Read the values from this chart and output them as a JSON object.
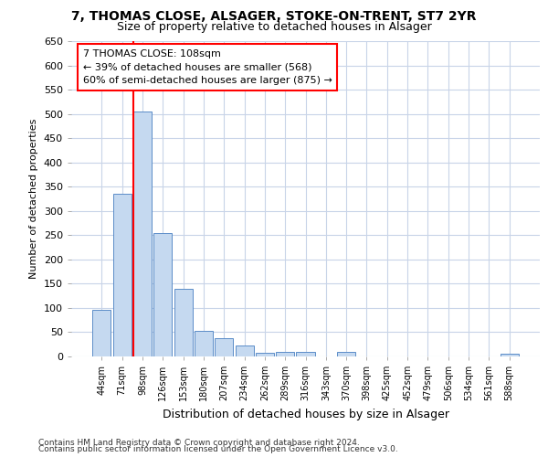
{
  "title_line1": "7, THOMAS CLOSE, ALSAGER, STOKE-ON-TRENT, ST7 2YR",
  "title_line2": "Size of property relative to detached houses in Alsager",
  "xlabel": "Distribution of detached houses by size in Alsager",
  "ylabel": "Number of detached properties",
  "footnote_line1": "Contains HM Land Registry data © Crown copyright and database right 2024.",
  "footnote_line2": "Contains public sector information licensed under the Open Government Licence v3.0.",
  "annotation_line1": "7 THOMAS CLOSE: 108sqm",
  "annotation_line2": "← 39% of detached houses are smaller (568)",
  "annotation_line3": "60% of semi-detached houses are larger (875) →",
  "bar_color": "#c5d9f0",
  "bar_edge_color": "#5b8dc8",
  "grid_color": "#c8d4e8",
  "vline_color": "red",
  "categories": [
    "44sqm",
    "71sqm",
    "98sqm",
    "126sqm",
    "153sqm",
    "180sqm",
    "207sqm",
    "234sqm",
    "262sqm",
    "289sqm",
    "316sqm",
    "343sqm",
    "370sqm",
    "398sqm",
    "425sqm",
    "452sqm",
    "479sqm",
    "506sqm",
    "534sqm",
    "561sqm",
    "588sqm"
  ],
  "values": [
    97,
    335,
    505,
    255,
    140,
    52,
    37,
    22,
    8,
    10,
    10,
    0,
    10,
    0,
    0,
    0,
    0,
    0,
    0,
    0,
    5
  ],
  "ylim": [
    0,
    650
  ],
  "yticks": [
    0,
    50,
    100,
    150,
    200,
    250,
    300,
    350,
    400,
    450,
    500,
    550,
    600,
    650
  ],
  "bg_color": "#ffffff",
  "plot_bg_color": "#ffffff"
}
